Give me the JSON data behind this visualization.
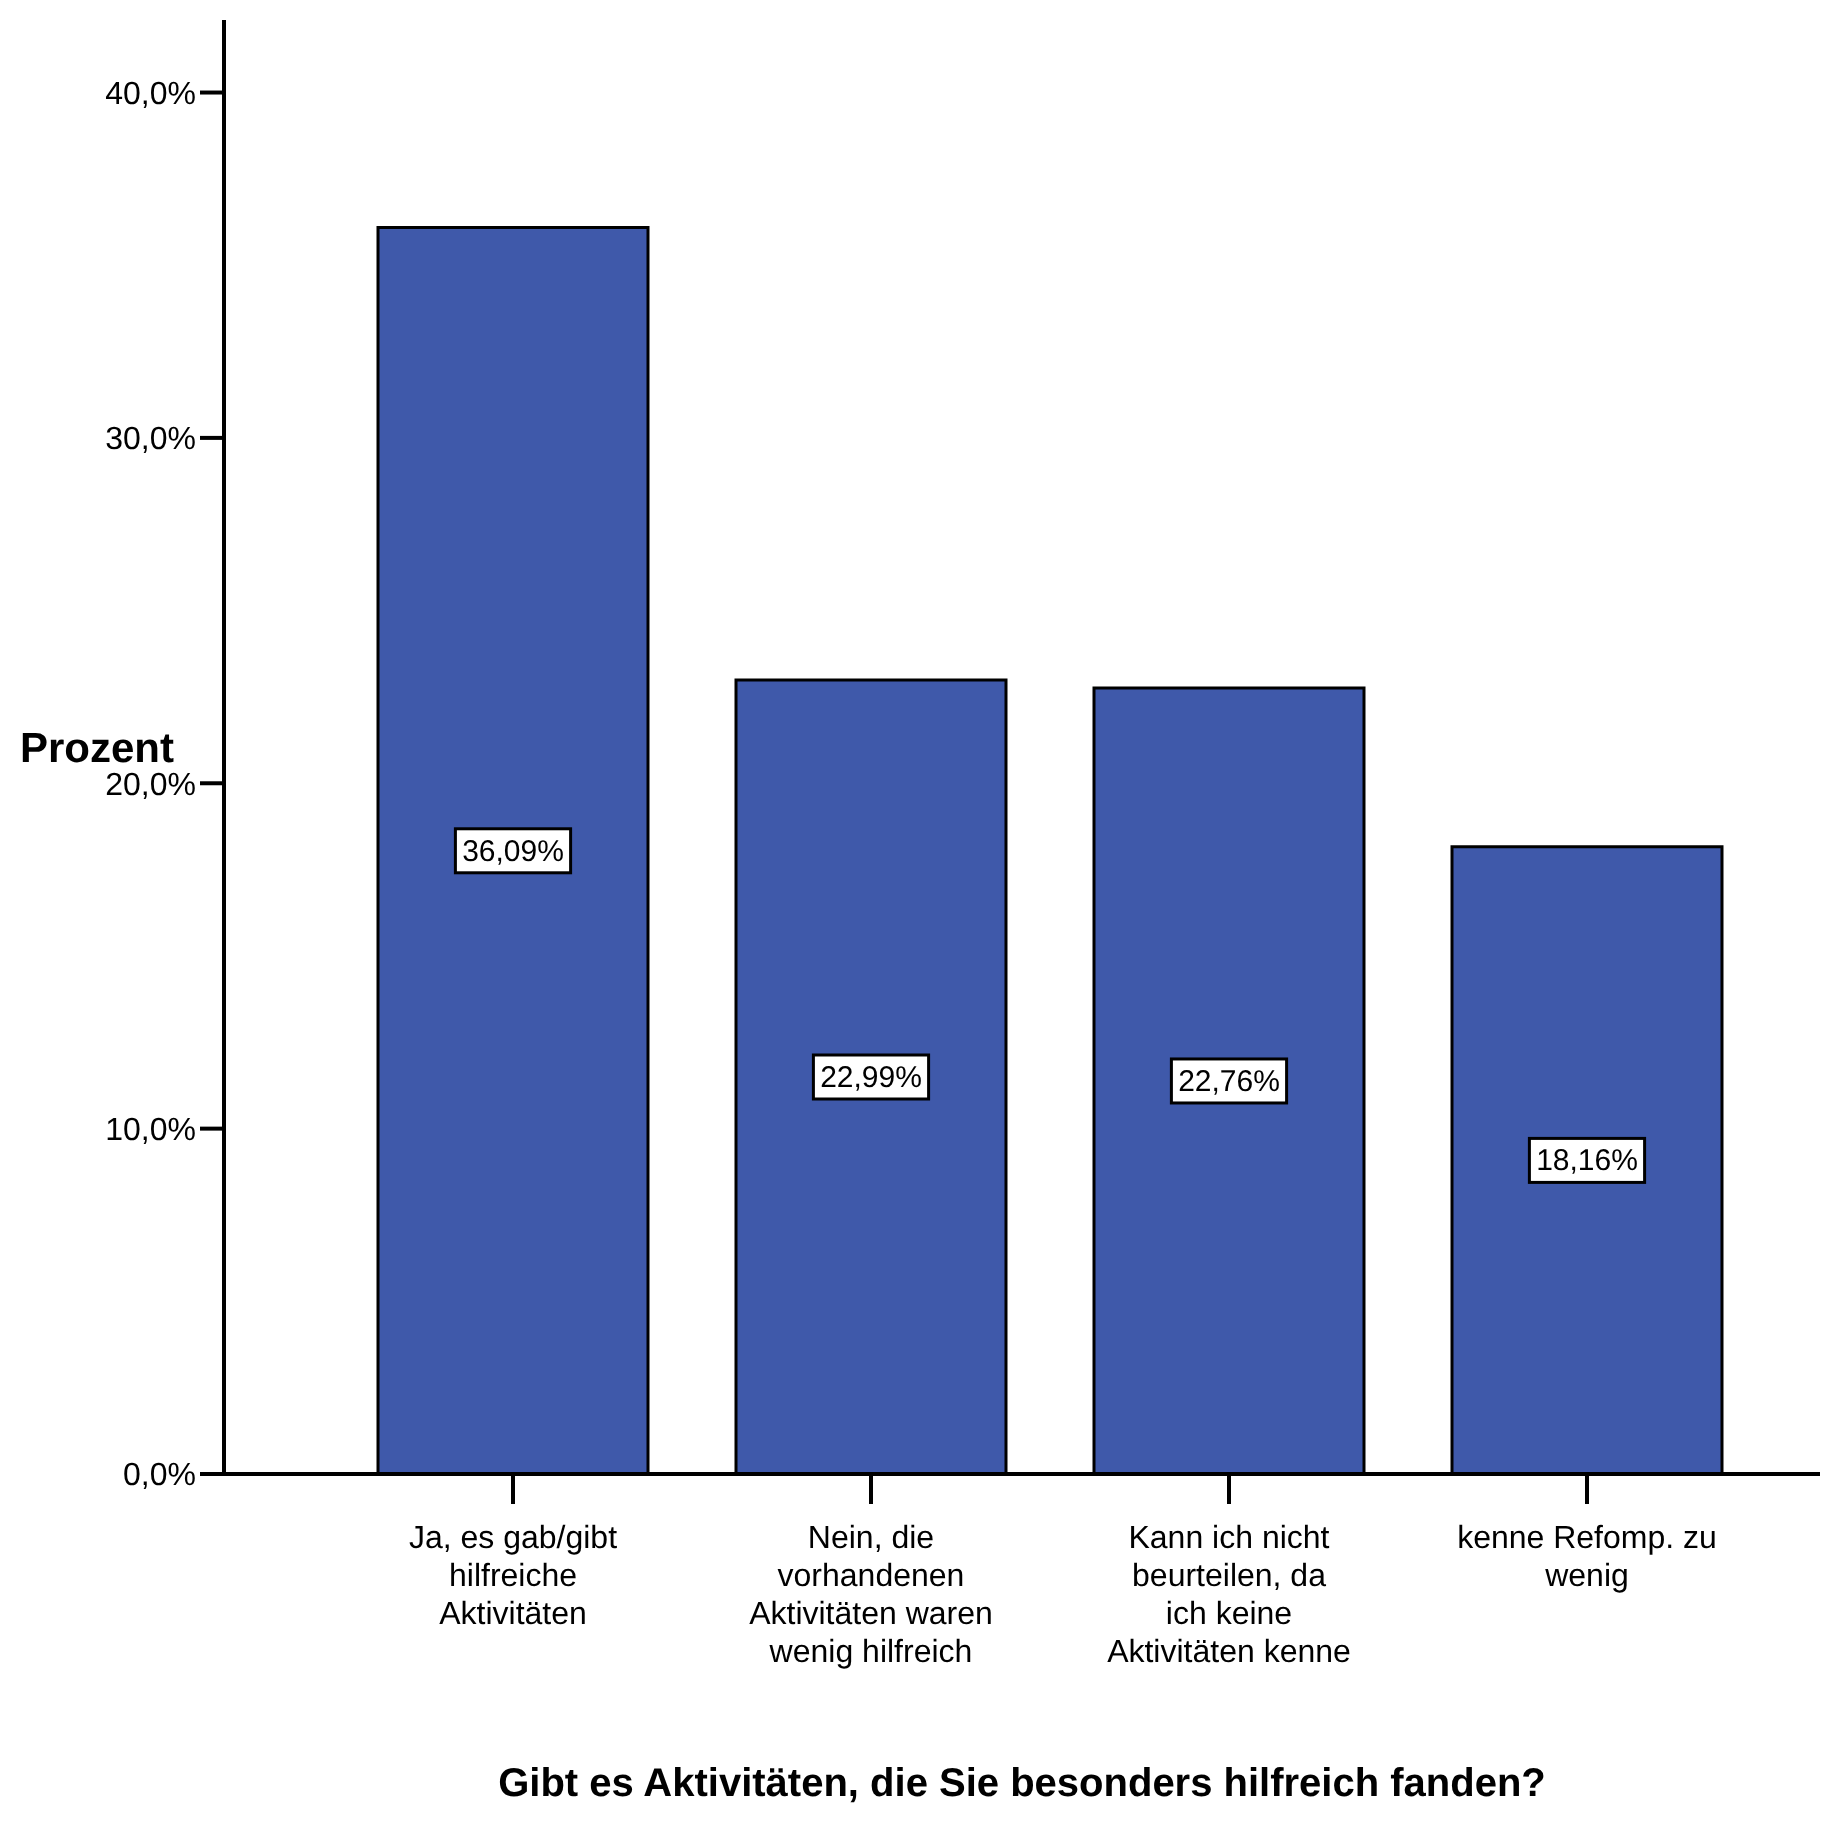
{
  "chart_data": {
    "type": "bar",
    "xlabel": "Gibt es Aktivitäten, die Sie besonders hilfreich fanden?",
    "ylabel": "Prozent",
    "categories": [
      "Ja, es gab/gibt hilfreiche Aktivitäten",
      "Nein, die vorhandenen Aktivitäten waren wenig hilfreich",
      "Kann ich nicht beurteilen, da ich keine Aktivitäten kenne",
      "kenne Refomp. zu wenig"
    ],
    "values": [
      36.09,
      22.99,
      22.76,
      18.16
    ],
    "value_labels": [
      "36,09%",
      "22,99%",
      "22,76%",
      "18,16%"
    ],
    "color": "#3f59aa",
    "ylim": [
      0,
      42.1
    ],
    "yticks": [
      {
        "value": 0,
        "label": "0,0%"
      },
      {
        "value": 10,
        "label": "10,0%"
      },
      {
        "value": 20,
        "label": "20,0%"
      },
      {
        "value": 30,
        "label": "30,0%"
      },
      {
        "value": 40,
        "label": "40,0%"
      }
    ],
    "grid": false,
    "legend": false
  }
}
